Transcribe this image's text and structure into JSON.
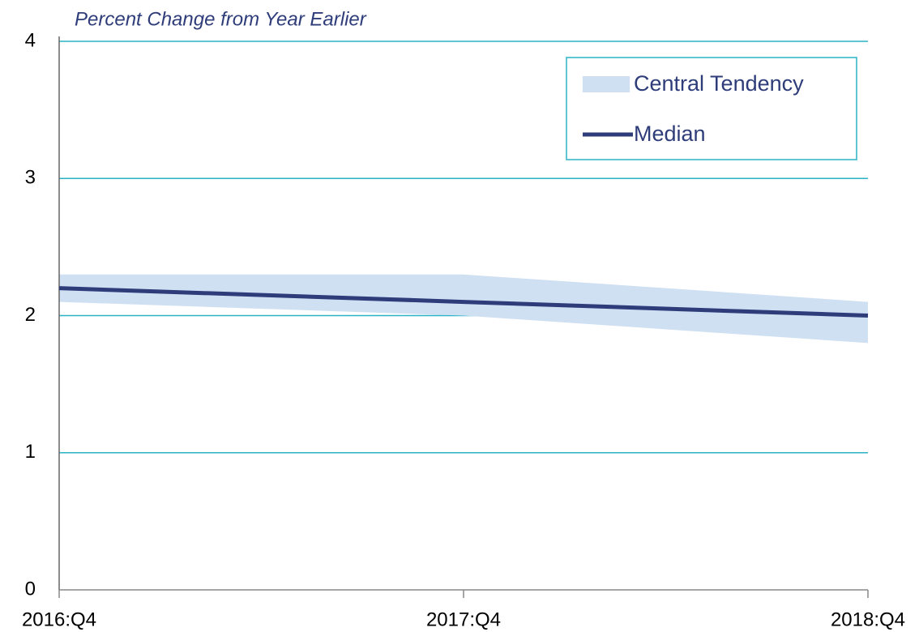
{
  "chart_data": {
    "type": "line",
    "title": "Percent Change from  Year Earlier",
    "categories": [
      "2016:Q4",
      "2017:Q4",
      "2018:Q4"
    ],
    "series": [
      {
        "name": "Central Tendency",
        "color": "#cfe0f3",
        "low": [
          2.1,
          2.0,
          1.8
        ],
        "high": [
          2.3,
          2.3,
          2.1
        ]
      },
      {
        "name": "Median",
        "color": "#2e3d7a",
        "values": [
          2.2,
          2.1,
          2.0
        ]
      }
    ],
    "ylim": [
      0,
      4
    ],
    "yticks": [
      0,
      1,
      2,
      3,
      4
    ],
    "grid": true,
    "legend": "upper right"
  }
}
